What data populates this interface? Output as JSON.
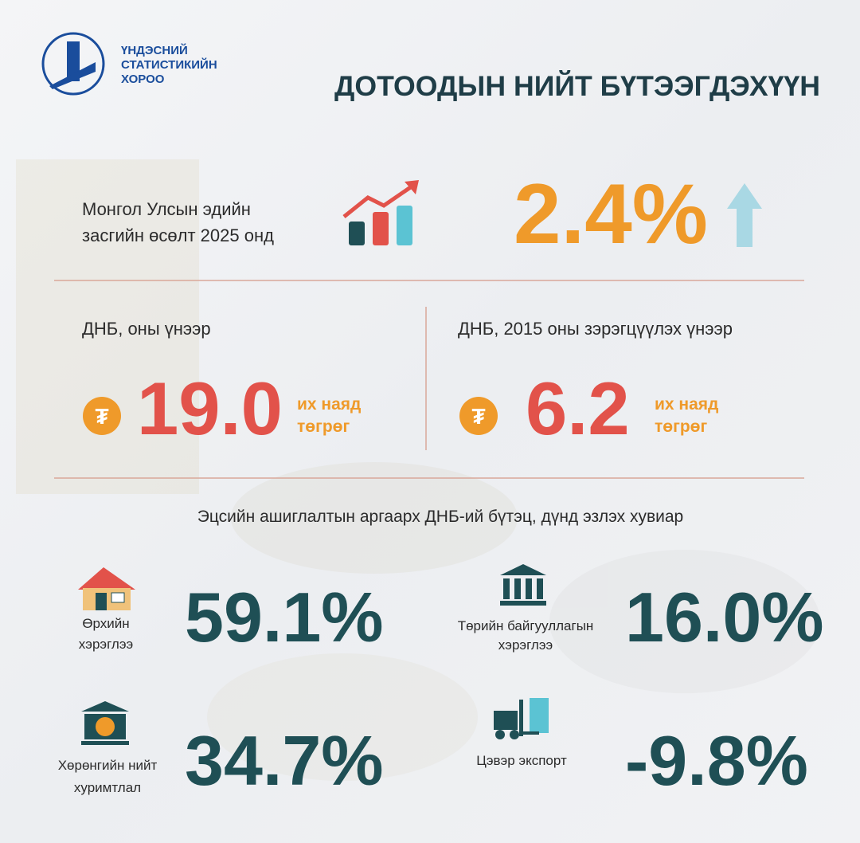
{
  "header": {
    "logo_lines": [
      "ҮНДЭСНИЙ",
      "СТАТИСТИКИЙН",
      "ХОРОО"
    ],
    "title": "ДОТООДЫН НИЙТ БҮТЭЭГДЭХҮҮН"
  },
  "growth": {
    "label_lines": [
      "Монгол Улсын эдийн",
      "засгийн өсөлт 2025 онд"
    ],
    "value": "2.4%"
  },
  "gdp": [
    {
      "label": "ДНБ, оны үнээр",
      "symbol": "₮",
      "value": "19.0",
      "unit_lines": [
        "их наяд",
        "төгрөг"
      ]
    },
    {
      "label": "ДНБ, 2015 оны зэрэгцүүлэх үнээр",
      "symbol": "₮",
      "value": "6.2",
      "unit_lines": [
        "их наяд",
        "төгрөг"
      ]
    }
  ],
  "structure": {
    "title": "Эцсийн ашиглалтын аргаарх ДНБ-ий бүтэц, дүнд эзлэх хувиар",
    "items": [
      {
        "label_lines": [
          "Өрхийн",
          "хэрэглээ"
        ],
        "value": "59.1%"
      },
      {
        "label_lines": [
          "Төрийн байгууллагын",
          "хэрэглээ"
        ],
        "value": "16.0%"
      },
      {
        "label_lines": [
          "Хөрөнгийн нийт",
          "хуримтлал"
        ],
        "value": "34.7%"
      },
      {
        "label_lines": [
          "Цэвэр экспорт"
        ],
        "value": "-9.8%"
      }
    ]
  }
}
